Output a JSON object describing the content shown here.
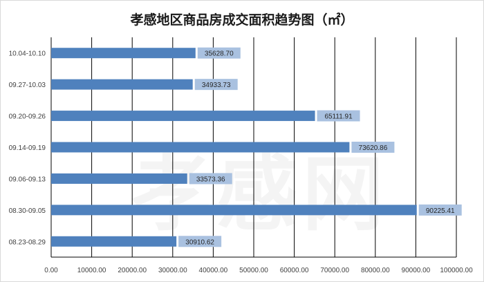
{
  "chart_data": {
    "type": "bar",
    "orientation": "horizontal",
    "title": "孝感地区商品房成交面积趋势图（㎡）",
    "categories": [
      "10.04-10.10",
      "09.27-10.03",
      "09.20-09.26",
      "09.14-09.19",
      "09.06-09.13",
      "08.30-09.05",
      "08.23-08.29"
    ],
    "values": [
      35628.7,
      34933.73,
      65111.91,
      73620.86,
      33573.36,
      90225.41,
      30910.62
    ],
    "value_labels": [
      "35628.70",
      "34933.73",
      "65111.91",
      "73620.86",
      "33573.36",
      "90225.41",
      "30910.62"
    ],
    "xlim": [
      0,
      100000
    ],
    "x_ticks": [
      "0.00",
      "10000.00",
      "20000.00",
      "30000.00",
      "40000.00",
      "50000.00",
      "60000.00",
      "70000.00",
      "80000.00",
      "90000.00",
      "100000.00"
    ],
    "grid": "vertical",
    "legend": "none",
    "colors": {
      "bar": "#4f81bd",
      "label_bg": "#a9c1e0",
      "grid": "#000000"
    }
  },
  "watermark": {
    "text": "孝感网"
  }
}
